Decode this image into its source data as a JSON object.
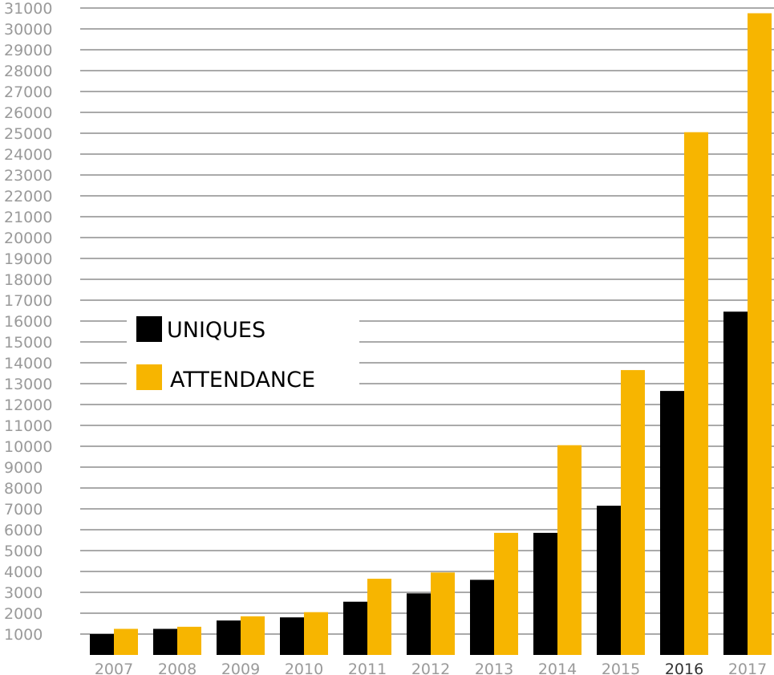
{
  "chart_data": {
    "type": "bar",
    "categories": [
      "2007",
      "2008",
      "2009",
      "2010",
      "2011",
      "2012",
      "2013",
      "2014",
      "2015",
      "2016",
      "2017"
    ],
    "highlighted_category": "2016",
    "series": [
      {
        "name": "UNIQUES",
        "color": "#000000",
        "values": [
          1000,
          1250,
          1650,
          1800,
          2550,
          2950,
          3600,
          5850,
          7150,
          12650,
          16450
        ]
      },
      {
        "name": "ATTENDANCE",
        "color": "#F7B500",
        "values": [
          1250,
          1350,
          1850,
          2050,
          3650,
          3950,
          5850,
          10050,
          13650,
          25050,
          30750
        ]
      }
    ],
    "yticks": [
      1000,
      2000,
      3000,
      4000,
      5000,
      6000,
      7000,
      8000,
      9000,
      10000,
      11000,
      12000,
      13000,
      14000,
      15000,
      16000,
      17000,
      18000,
      19000,
      20000,
      21000,
      22000,
      23000,
      24000,
      25000,
      26000,
      27000,
      28000,
      29000,
      30000,
      31000
    ],
    "ylim": [
      0,
      31000
    ],
    "grid": true,
    "legend_position": "left-middle",
    "title": "",
    "xlabel": "",
    "ylabel": ""
  }
}
